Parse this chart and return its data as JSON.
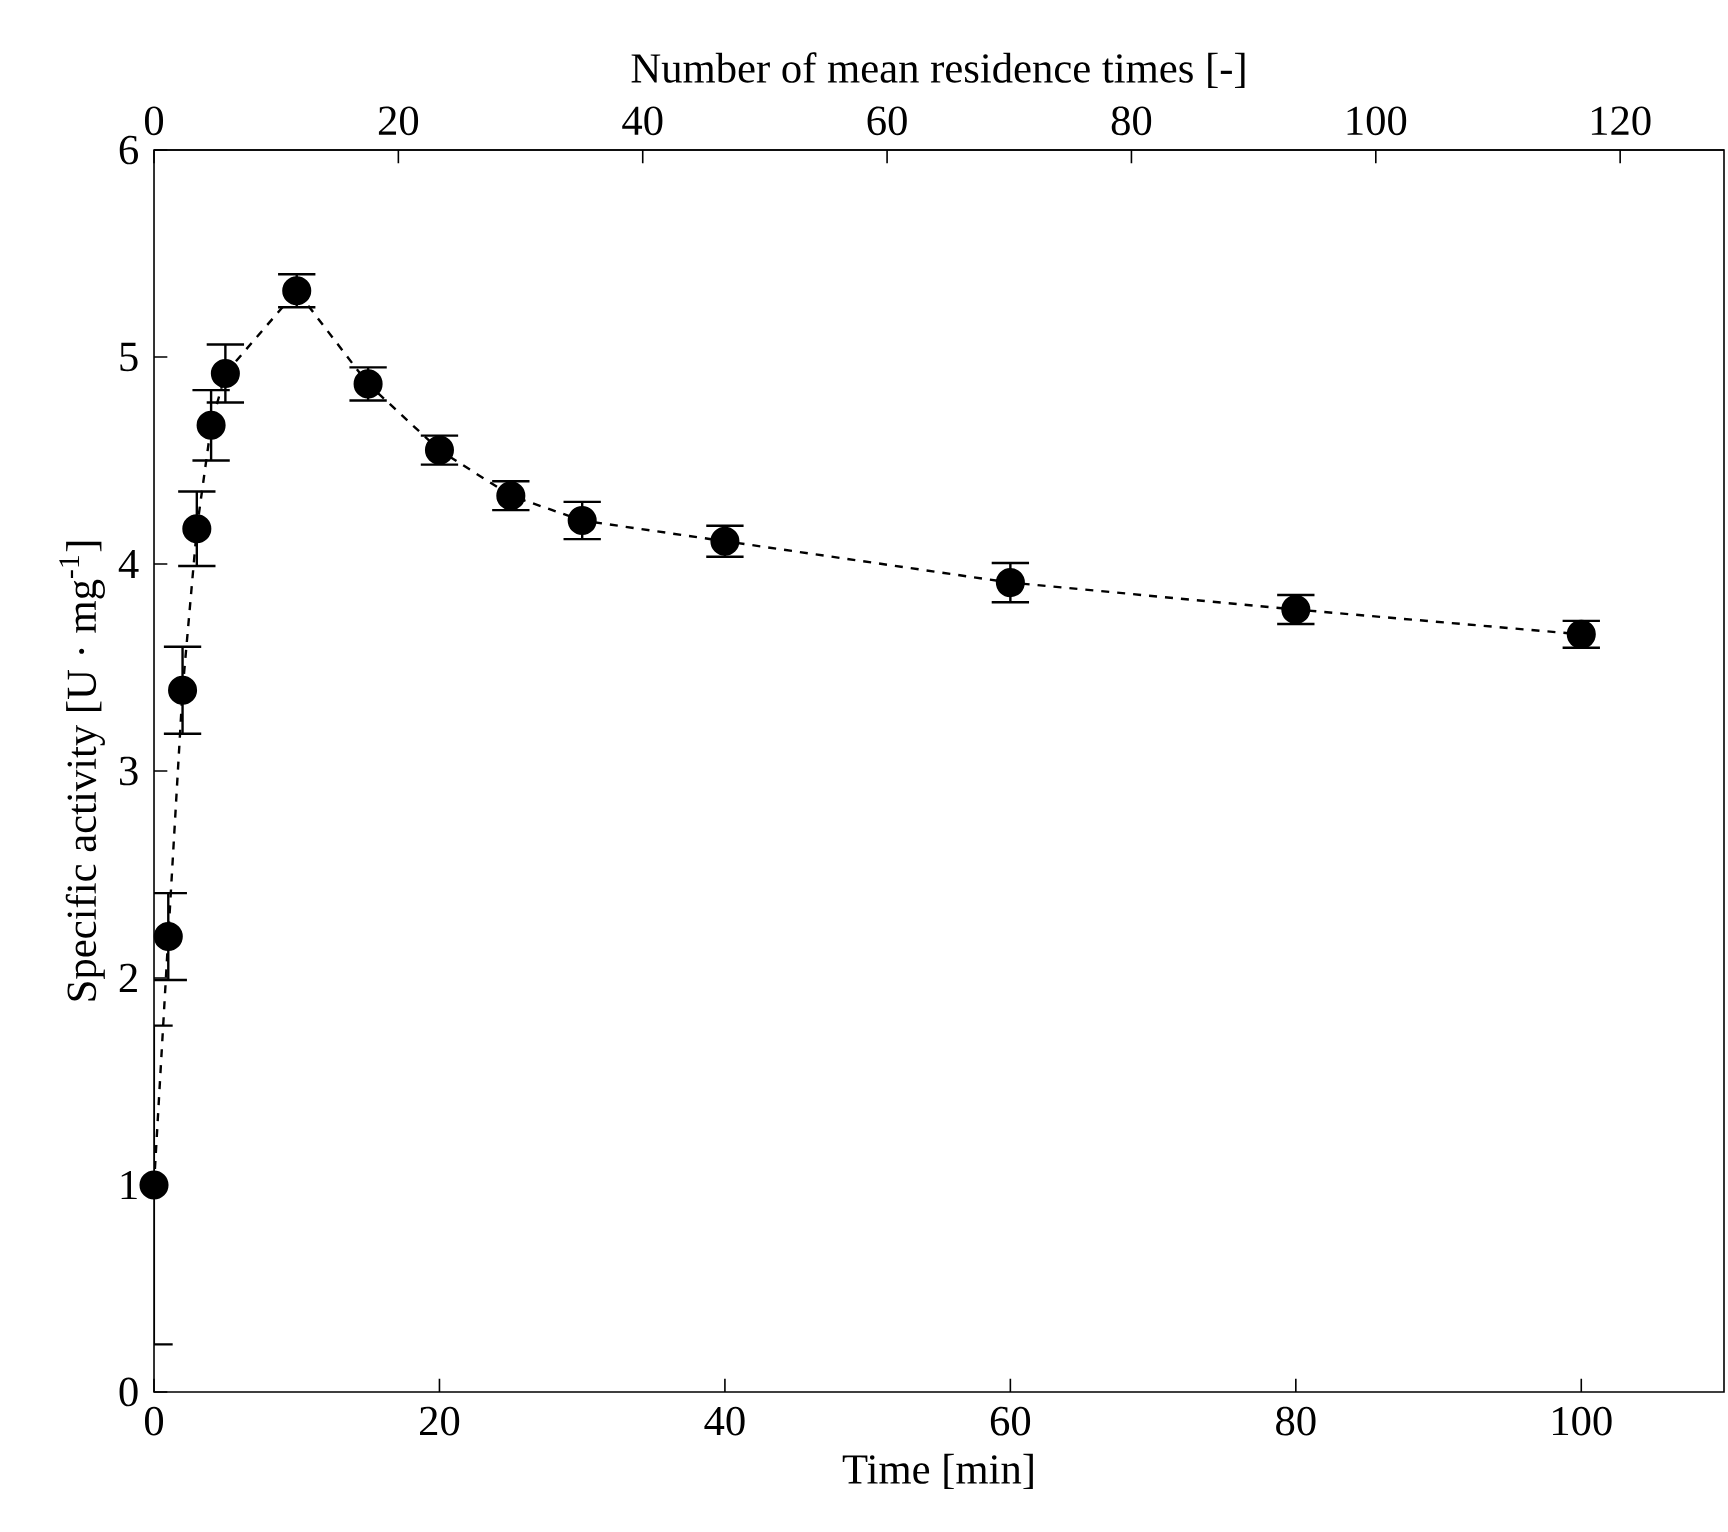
{
  "chart_data": {
    "type": "line",
    "xlabel": "Time [min]",
    "ylabel": "Specific activity [U · mg$^{-1}$]",
    "x2label": "Number of mean residence times [-]",
    "x": [
      0,
      1,
      2,
      3,
      4,
      5,
      10,
      15,
      20,
      25,
      30,
      40,
      60,
      80,
      100
    ],
    "series": [
      {
        "color": "#000000",
        "values": [
          1.0,
          2.2,
          3.39,
          4.17,
          4.67,
          4.92,
          5.32,
          4.87,
          4.55,
          4.33,
          4.21,
          4.11,
          3.91,
          3.78,
          3.66
        ],
        "errors": [
          0.77,
          0.21,
          0.21,
          0.18,
          0.17,
          0.14,
          0.08,
          0.08,
          0.07,
          0.07,
          0.09,
          0.075,
          0.095,
          0.07,
          0.065
        ]
      }
    ],
    "marker": "circle",
    "line_style": "dashed",
    "xlim": [
      0,
      110
    ],
    "ylim": [
      0,
      6
    ],
    "xticks": [
      0,
      20,
      40,
      60,
      80,
      100
    ],
    "yticks": [
      0,
      1,
      2,
      3,
      4,
      5,
      6
    ],
    "x2lim": [
      0,
      128.5
    ],
    "x2ticks": [
      0,
      20,
      40,
      60,
      80,
      100,
      120
    ]
  }
}
